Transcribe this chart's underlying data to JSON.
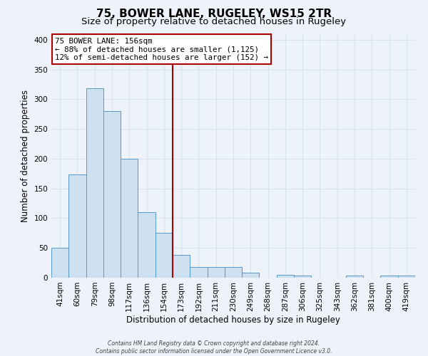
{
  "title": "75, BOWER LANE, RUGELEY, WS15 2TR",
  "subtitle": "Size of property relative to detached houses in Rugeley",
  "xlabel": "Distribution of detached houses by size in Rugeley",
  "ylabel": "Number of detached properties",
  "bar_labels": [
    "41sqm",
    "60sqm",
    "79sqm",
    "98sqm",
    "117sqm",
    "136sqm",
    "154sqm",
    "173sqm",
    "192sqm",
    "211sqm",
    "230sqm",
    "249sqm",
    "268sqm",
    "287sqm",
    "306sqm",
    "325sqm",
    "343sqm",
    "362sqm",
    "381sqm",
    "400sqm",
    "419sqm"
  ],
  "bar_heights": [
    50,
    173,
    318,
    280,
    200,
    110,
    75,
    38,
    18,
    18,
    18,
    8,
    0,
    5,
    3,
    0,
    0,
    4,
    0,
    3,
    3
  ],
  "bar_color": "#cde0f0",
  "bar_edge_color": "#5599cc",
  "vline_index": 6,
  "vline_color": "#aa0000",
  "ylim": [
    0,
    410
  ],
  "yticks": [
    0,
    50,
    100,
    150,
    200,
    250,
    300,
    350,
    400
  ],
  "annotation_title": "75 BOWER LANE: 156sqm",
  "annotation_line1": "← 88% of detached houses are smaller (1,125)",
  "annotation_line2": "12% of semi-detached houses are larger (152) →",
  "annotation_box_facecolor": "#ffffff",
  "annotation_box_edgecolor": "#aa0000",
  "footer1": "Contains HM Land Registry data © Crown copyright and database right 2024.",
  "footer2": "Contains public sector information licensed under the Open Government Licence v3.0.",
  "background_color": "#eef2fa",
  "grid_color": "#d8e4f0",
  "title_fontsize": 11,
  "subtitle_fontsize": 9.5,
  "axis_label_fontsize": 8.5,
  "tick_fontsize": 7.5
}
